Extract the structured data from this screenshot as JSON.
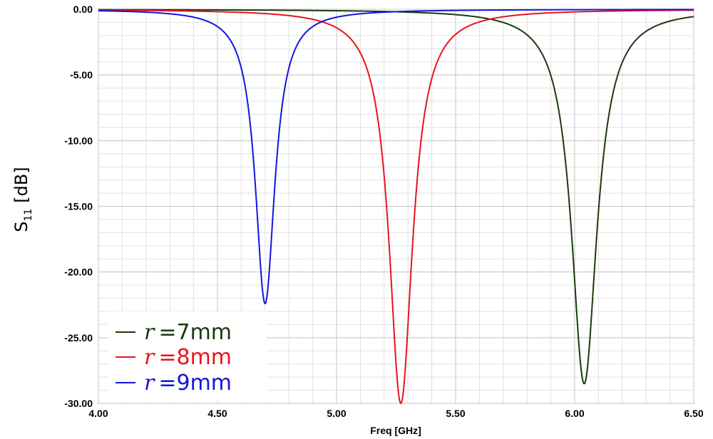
{
  "chart_data": {
    "type": "line",
    "title": "",
    "xlabel": "Freq [GHz]",
    "ylabel_main": "S",
    "ylabel_sub": "11",
    "ylabel_unit": "[dB]",
    "xlim": [
      4.0,
      6.5
    ],
    "ylim": [
      -30.0,
      0.0
    ],
    "x_ticks": [
      "4.00",
      "4.50",
      "5.00",
      "5.50",
      "6.00",
      "6.50"
    ],
    "y_ticks": [
      "0.00",
      "-5.00",
      "-10.00",
      "-15.00",
      "-20.00",
      "-25.00",
      "-30.00"
    ],
    "grid": true,
    "legend_position": "bottom-left",
    "series": [
      {
        "name_var": "r",
        "name_eq": "=",
        "name_val": "7mm",
        "color": "#1a3a10",
        "resonance": 6.04,
        "min": -28.5,
        "width": 0.065
      },
      {
        "name_var": "r",
        "name_eq": "=",
        "name_val": "8mm",
        "color": "#e8141c",
        "resonance": 5.27,
        "min": -30.0,
        "width": 0.06
      },
      {
        "name_var": "r",
        "name_eq": "=",
        "name_val": "9mm",
        "color": "#1414e0",
        "resonance": 4.7,
        "min": -22.4,
        "width": 0.05
      }
    ]
  }
}
